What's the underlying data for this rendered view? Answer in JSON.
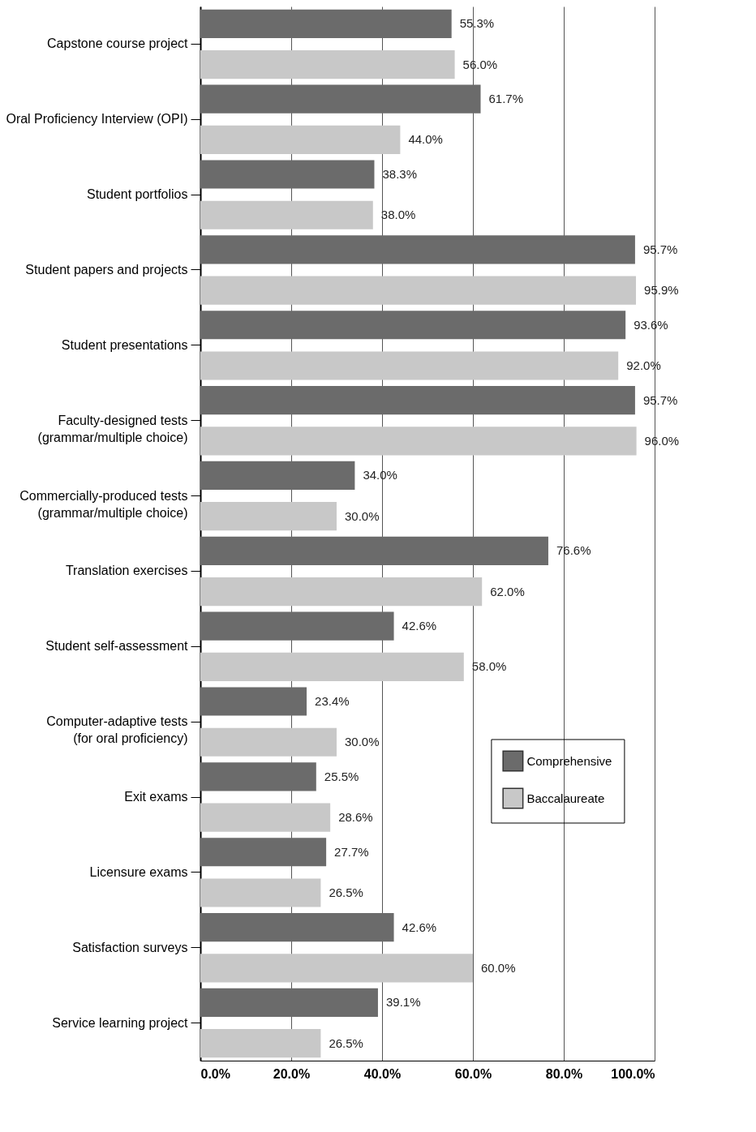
{
  "chart_data": {
    "type": "bar",
    "orientation": "horizontal",
    "categories": [
      "Capstone course project",
      "Oral Proficiency Interview (OPI)",
      "Student portfolios",
      "Student papers and projects",
      "Student presentations",
      "Faculty-designed tests\n(grammar/multiple choice)",
      "Commercially-produced tests\n(grammar/multiple choice)",
      "Translation exercises",
      "Student self-assessment",
      "Computer-adaptive tests\n(for  oral proficiency)",
      "Exit exams",
      "Licensure exams",
      "Satisfaction surveys",
      "Service learning project"
    ],
    "series": [
      {
        "name": "Comprehensive",
        "color": "#6b6b6b",
        "values": [
          55.3,
          61.7,
          38.3,
          95.7,
          93.6,
          95.7,
          34.0,
          76.6,
          42.6,
          23.4,
          25.5,
          27.7,
          42.6,
          39.1
        ],
        "value_labels": [
          "55.3%",
          "61.7%",
          "38.3%",
          "95.7%",
          "93.6%",
          "95.7%",
          "34.0%",
          "76.6%",
          "42.6%",
          "23.4%",
          "25.5%",
          "27.7%",
          "42.6%",
          "39.1%"
        ]
      },
      {
        "name": "Baccalaureate",
        "color": "#c8c8c8",
        "values": [
          56.0,
          44.0,
          38.0,
          95.9,
          92.0,
          96.0,
          30.0,
          62.0,
          58.0,
          30.0,
          28.6,
          26.5,
          60.0,
          26.5
        ],
        "value_labels": [
          "56.0%",
          "44.0%",
          "38.0%",
          "95.9%",
          "92.0%",
          "96.0%",
          "30.0%",
          "62.0%",
          "58.0%",
          "30.0%",
          "28.6%",
          "26.5%",
          "60.0%",
          "26.5%"
        ]
      }
    ],
    "xlim": [
      0,
      100
    ],
    "xticks": [
      {
        "value": 0,
        "label": "0.0%"
      },
      {
        "value": 20,
        "label": "20.0%"
      },
      {
        "value": 40,
        "label": "40.0%"
      },
      {
        "value": 60,
        "label": "60.0%"
      },
      {
        "value": 80,
        "label": "80.0%"
      },
      {
        "value": 100,
        "label": "100.0%"
      }
    ],
    "grid": "x",
    "legend": "bottom right"
  }
}
